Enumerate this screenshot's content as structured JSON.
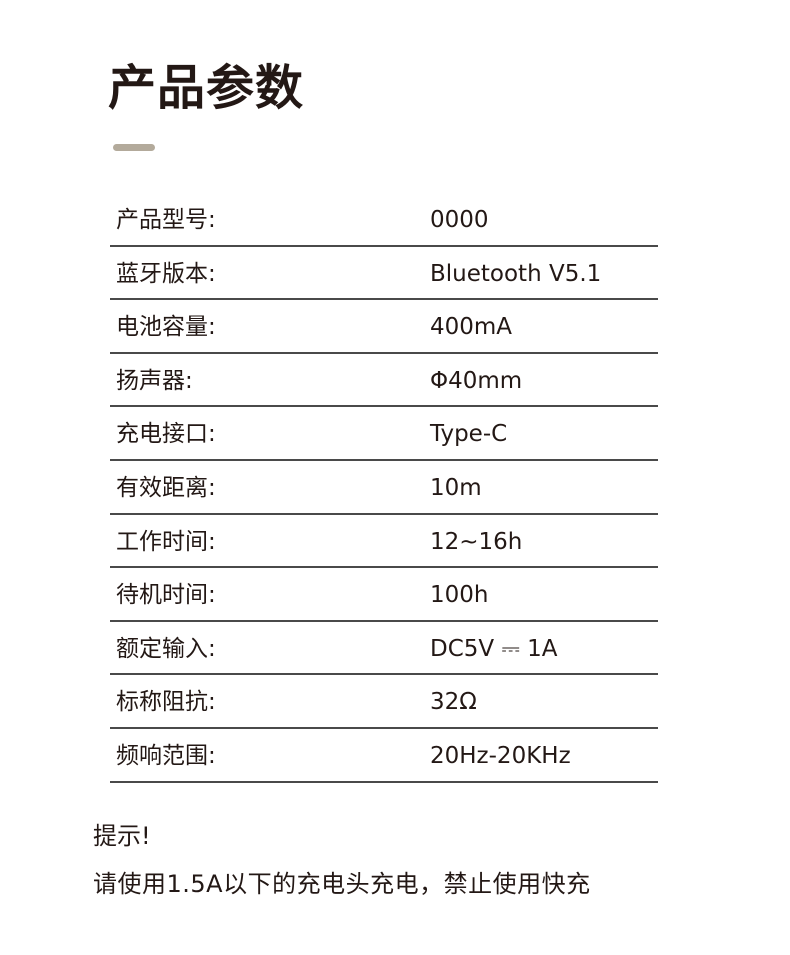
{
  "title": "产品参数",
  "accent_color": "#b3aa9b",
  "specs": [
    {
      "label": "产品型号:",
      "value": "0000"
    },
    {
      "label": "蓝牙版本:",
      "value": "Bluetooth V5.1"
    },
    {
      "label": "电池容量:",
      "value": "400mA"
    },
    {
      "label": "扬声器:",
      "value": "Φ40mm"
    },
    {
      "label": "充电接口:",
      "value": "Type-C"
    },
    {
      "label": "有效距离:",
      "value": "10m"
    },
    {
      "label": "工作时间:",
      "value": "12~16h"
    },
    {
      "label": "待机时间:",
      "value": "100h"
    },
    {
      "label": "额定输入:",
      "value": "DC5V ⎓ 1A"
    },
    {
      "label": "标称阻抗:",
      "value": "32Ω"
    },
    {
      "label": "频响范围:",
      "value": "20Hz-20KHz"
    }
  ],
  "tip": {
    "title": "提示!",
    "text": "请使用1.5A以下的充电头充电，禁止使用快充"
  }
}
